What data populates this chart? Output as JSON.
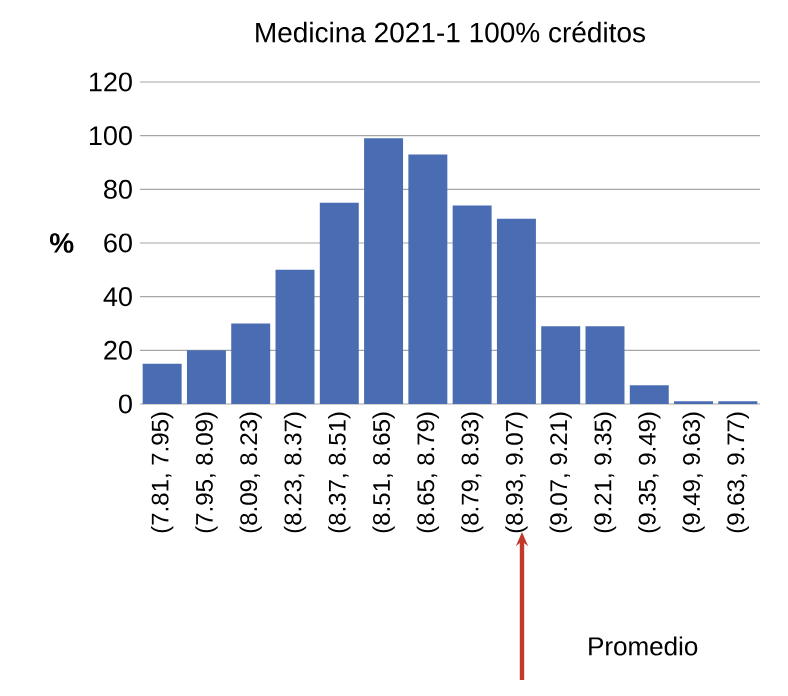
{
  "chart_data": {
    "type": "bar",
    "title": "Medicina 2021-1  100% créditos",
    "ylabel": "%",
    "categories": [
      "(7.81, 7.95)",
      "(7.95, 8.09)",
      "(8.09, 8.23)",
      "(8.23, 8.37)",
      "(8.37, 8.51)",
      "(8.51, 8.65)",
      "(8.65, 8.79)",
      "(8.79, 8.93)",
      "(8.93, 9.07)",
      "(9.07, 9.21)",
      "(9.21, 9.35)",
      "(9.35, 9.49)",
      "(9.49, 9.63)",
      "(9.63, 9.77)"
    ],
    "values": [
      15,
      20,
      30,
      50,
      75,
      99,
      93,
      74,
      69,
      29,
      29,
      7,
      1,
      1
    ],
    "color": "#4a6cb3",
    "ylim": [
      0,
      120
    ],
    "yticks": [
      0,
      20,
      40,
      60,
      80,
      100,
      120
    ],
    "grid": "y",
    "annotations": [
      "Promedio"
    ]
  }
}
